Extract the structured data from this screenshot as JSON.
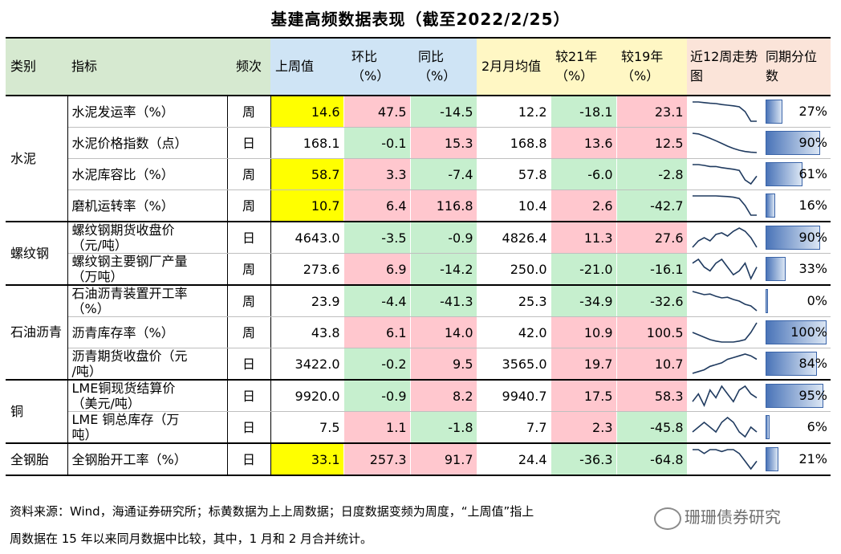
{
  "title": "基建高频数据表现（截至2022/2/25）",
  "headers": [
    "类别",
    "指标",
    "频次",
    "上周值",
    "环比（%）",
    "同比（%）",
    "2月月均值",
    "较21年（%）",
    "较19年（%）",
    "近12周走势图",
    "同期分位数"
  ],
  "colors": {
    "yellow": "#ffff00",
    "pink": "#ffc7ce",
    "green": "#c6efce",
    "bar": "#4a74b8"
  },
  "rows": [
    {
      "category": "水泥",
      "indicator": "水泥发运率（%）",
      "freq": "周",
      "last": "14.6",
      "hb": "47.5",
      "tb": "-14.5",
      "avg": "12.2",
      "vs21": "-18.1",
      "vs19": "23.1",
      "pct": "27%",
      "pct_value": 0.27,
      "spark": [
        9,
        9,
        8.8,
        8.6,
        8.5,
        8.2,
        8,
        7.8,
        7.5,
        6,
        3,
        3
      ]
    },
    {
      "category": "",
      "indicator": "水泥价格指数（点）",
      "freq": "日",
      "last": "168.1",
      "hb": "-0.1",
      "tb": "15.3",
      "avg": "168.8",
      "vs21": "13.6",
      "vs19": "12.5",
      "pct": "90%",
      "pct_value": 0.9,
      "spark": [
        10,
        9.8,
        9.2,
        8.5,
        7.8,
        7,
        6.2,
        5.5,
        5,
        4.6,
        4.4,
        4.3
      ]
    },
    {
      "category": "",
      "indicator": "水泥库容比（%）",
      "freq": "周",
      "last": "58.7",
      "hb": "3.3",
      "tb": "-7.4",
      "avg": "57.8",
      "vs21": "-6.0",
      "vs19": "-2.8",
      "pct": "61%",
      "pct_value": 0.61,
      "spark": [
        8,
        8,
        7.8,
        7.5,
        7.5,
        7.2,
        7,
        6.8,
        6.5,
        4,
        3,
        5
      ]
    },
    {
      "category": "",
      "indicator": "磨机运转率（%）",
      "freq": "周",
      "last": "10.7",
      "hb": "6.4",
      "tb": "116.8",
      "avg": "10.4",
      "vs21": "2.6",
      "vs19": "-42.7",
      "pct": "16%",
      "pct_value": 0.16,
      "spark": [
        9,
        9,
        9,
        9,
        9,
        8.9,
        8.8,
        8.6,
        8.2,
        6,
        3,
        3
      ]
    },
    {
      "category": "螺纹钢",
      "indicator_l1": "螺纹钢期货收盘价",
      "indicator_l2": "（元/吨）",
      "freq": "日",
      "last": "4643.0",
      "hb": "-3.5",
      "tb": "-0.9",
      "avg": "4826.4",
      "vs21": "11.3",
      "vs19": "27.6",
      "pct": "90%",
      "pct_value": 0.9,
      "spark": [
        3,
        5,
        6,
        5,
        7,
        7.5,
        6.5,
        8,
        9,
        8,
        6,
        3
      ]
    },
    {
      "category": "",
      "indicator_l1": "螺纹钢主要钢厂产量",
      "indicator_l2": "（万吨）",
      "freq": "周",
      "last": "273.6",
      "hb": "6.9",
      "tb": "-14.2",
      "avg": "250.0",
      "vs21": "-21.0",
      "vs19": "-16.1",
      "pct": "33%",
      "pct_value": 0.33,
      "spark": [
        7,
        8,
        6,
        5,
        7,
        8,
        6,
        4,
        5,
        7,
        3,
        6
      ]
    },
    {
      "category": "石油沥青",
      "indicator_l1": "石油沥青装置开工率",
      "indicator_l2": "（%）",
      "freq": "周",
      "last": "23.9",
      "hb": "-4.4",
      "tb": "-41.3",
      "avg": "25.3",
      "vs21": "-34.9",
      "vs19": "-32.6",
      "pct": "0%",
      "pct_value": 0.0,
      "spark": [
        9,
        8.5,
        8,
        8.2,
        7.5,
        7,
        7.2,
        6.5,
        6,
        5,
        4.5,
        3
      ]
    },
    {
      "category": "",
      "indicator": "沥青库存率（%）",
      "freq": "周",
      "last": "43.8",
      "hb": "6.1",
      "tb": "14.0",
      "avg": "42.0",
      "vs21": "10.9",
      "vs19": "100.5",
      "pct": "100%",
      "pct_value": 1.0,
      "spark": [
        5,
        4.5,
        4,
        3.5,
        3.2,
        3,
        3,
        3,
        3.2,
        3.5,
        5,
        7
      ]
    },
    {
      "category": "",
      "indicator_l1": "沥青期货收盘价（元",
      "indicator_l2": "/吨）",
      "freq": "日",
      "last": "3422.0",
      "hb": "-0.2",
      "tb": "9.5",
      "avg": "3565.0",
      "vs21": "19.7",
      "vs19": "10.7",
      "pct": "84%",
      "pct_value": 0.84,
      "spark": [
        3,
        3.5,
        4,
        5,
        5.5,
        6,
        7,
        7.5,
        8,
        8.5,
        8,
        7
      ]
    },
    {
      "category": "铜",
      "indicator_l1": "LME铜现货结算价",
      "indicator_l2": "（美元/吨）",
      "freq": "日",
      "last": "9920.0",
      "hb": "-0.9",
      "tb": "8.2",
      "avg": "9940.7",
      "vs21": "17.5",
      "vs19": "58.3",
      "pct": "95%",
      "pct_value": 0.95,
      "spark": [
        4,
        6,
        3,
        7,
        5,
        8,
        6,
        4,
        7,
        8,
        6,
        5
      ]
    },
    {
      "category": "",
      "indicator_l1": "LME 铜总库存（万",
      "indicator_l2": "吨）",
      "freq": "日",
      "last": "7.5",
      "hb": "1.1",
      "tb": "-1.8",
      "avg": "7.7",
      "vs21": "2.3",
      "vs19": "-45.8",
      "pct": "6%",
      "pct_value": 0.06,
      "spark": [
        5,
        6,
        7,
        6,
        5,
        7,
        8,
        7,
        5,
        4,
        6,
        5
      ]
    },
    {
      "category": "全钢胎",
      "indicator": "全钢胎开工率（%）",
      "freq": "日",
      "last": "33.1",
      "hb": "257.3",
      "tb": "91.7",
      "avg": "24.4",
      "vs21": "-36.3",
      "vs19": "-64.8",
      "pct": "21%",
      "pct_value": 0.21,
      "spark": [
        8,
        8,
        7,
        8,
        8,
        7.5,
        8,
        8,
        7,
        5,
        3,
        5
      ]
    }
  ],
  "note_line1": "资料来源：Wind，海通证券研究所；标黄数据为上上周数据；日度数据变频为周度，“上周值”指上",
  "note_line2": "周数据在 15 年以来同月数据中比较，其中，1 月和 2 月合并统计。",
  "watermark": "珊珊债券研究"
}
